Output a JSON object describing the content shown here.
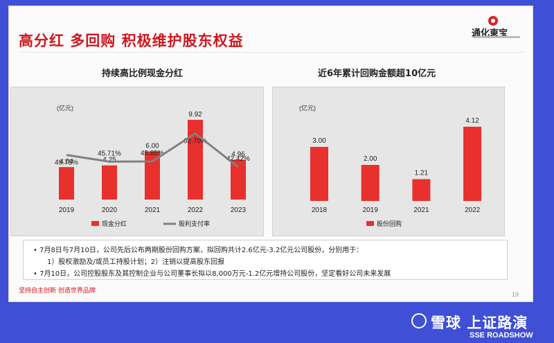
{
  "slide": {
    "title": "高分红 多回购 积极维护股东权益",
    "logo_text": "通化東宝",
    "page_number": "19",
    "footer_slogan": "坚持自主创新 创造世界品牌"
  },
  "notes": {
    "line1": "7月8日与7月10日，公司先后公布两期股份回购方案，拟回购共计2.6亿元-3.2亿元公司股份，分别用于：",
    "line2": "1）股权激励及/或员工持股计划；2）注销以提高股东回报",
    "line3": "7月10日，公司控股股东及其控制企业与公司董事长拟以8,000万元-1.2亿元增持公司股份，坚定看好公司未来发展"
  },
  "watermark": {
    "main": "雪球 上证路演",
    "sub": "SSE ROADSHOW"
  },
  "colors": {
    "accent": "#d0161d",
    "bar": "#e8302c",
    "line": "#808080",
    "panel_bg": "#e6e6e6"
  },
  "chart_data": [
    {
      "type": "bar",
      "title": "持续高比例现金分红",
      "unit_label": "(亿元)",
      "categories": [
        "2019",
        "2020",
        "2021",
        "2022",
        "2023"
      ],
      "series": [
        {
          "name": "现金分红",
          "type": "bar",
          "values": [
            4.04,
            4.25,
            6.0,
            9.92,
            4.96
          ],
          "labels": [
            "4.04",
            "4.25",
            "6.00",
            "9.92",
            "4.96"
          ]
        },
        {
          "name": "股利支付率",
          "type": "line",
          "values": [
            49.75,
            45.71,
            45.85,
            62.7,
            42.42
          ],
          "labels": [
            "49.75%",
            "45.71%",
            "45.85%",
            "62.70%",
            "42.42%"
          ]
        }
      ],
      "legend_position": "bottom"
    },
    {
      "type": "bar",
      "title": "近6年累计回购金额超10亿元",
      "unit_label": "(亿元)",
      "categories": [
        "2018",
        "2019",
        "2021",
        "2022"
      ],
      "series": [
        {
          "name": "股份回购",
          "values": [
            3.0,
            2.0,
            1.21,
            4.12
          ],
          "labels": [
            "3.00",
            "2.00",
            "1.21",
            "4.12"
          ]
        }
      ],
      "legend_position": "bottom"
    }
  ]
}
